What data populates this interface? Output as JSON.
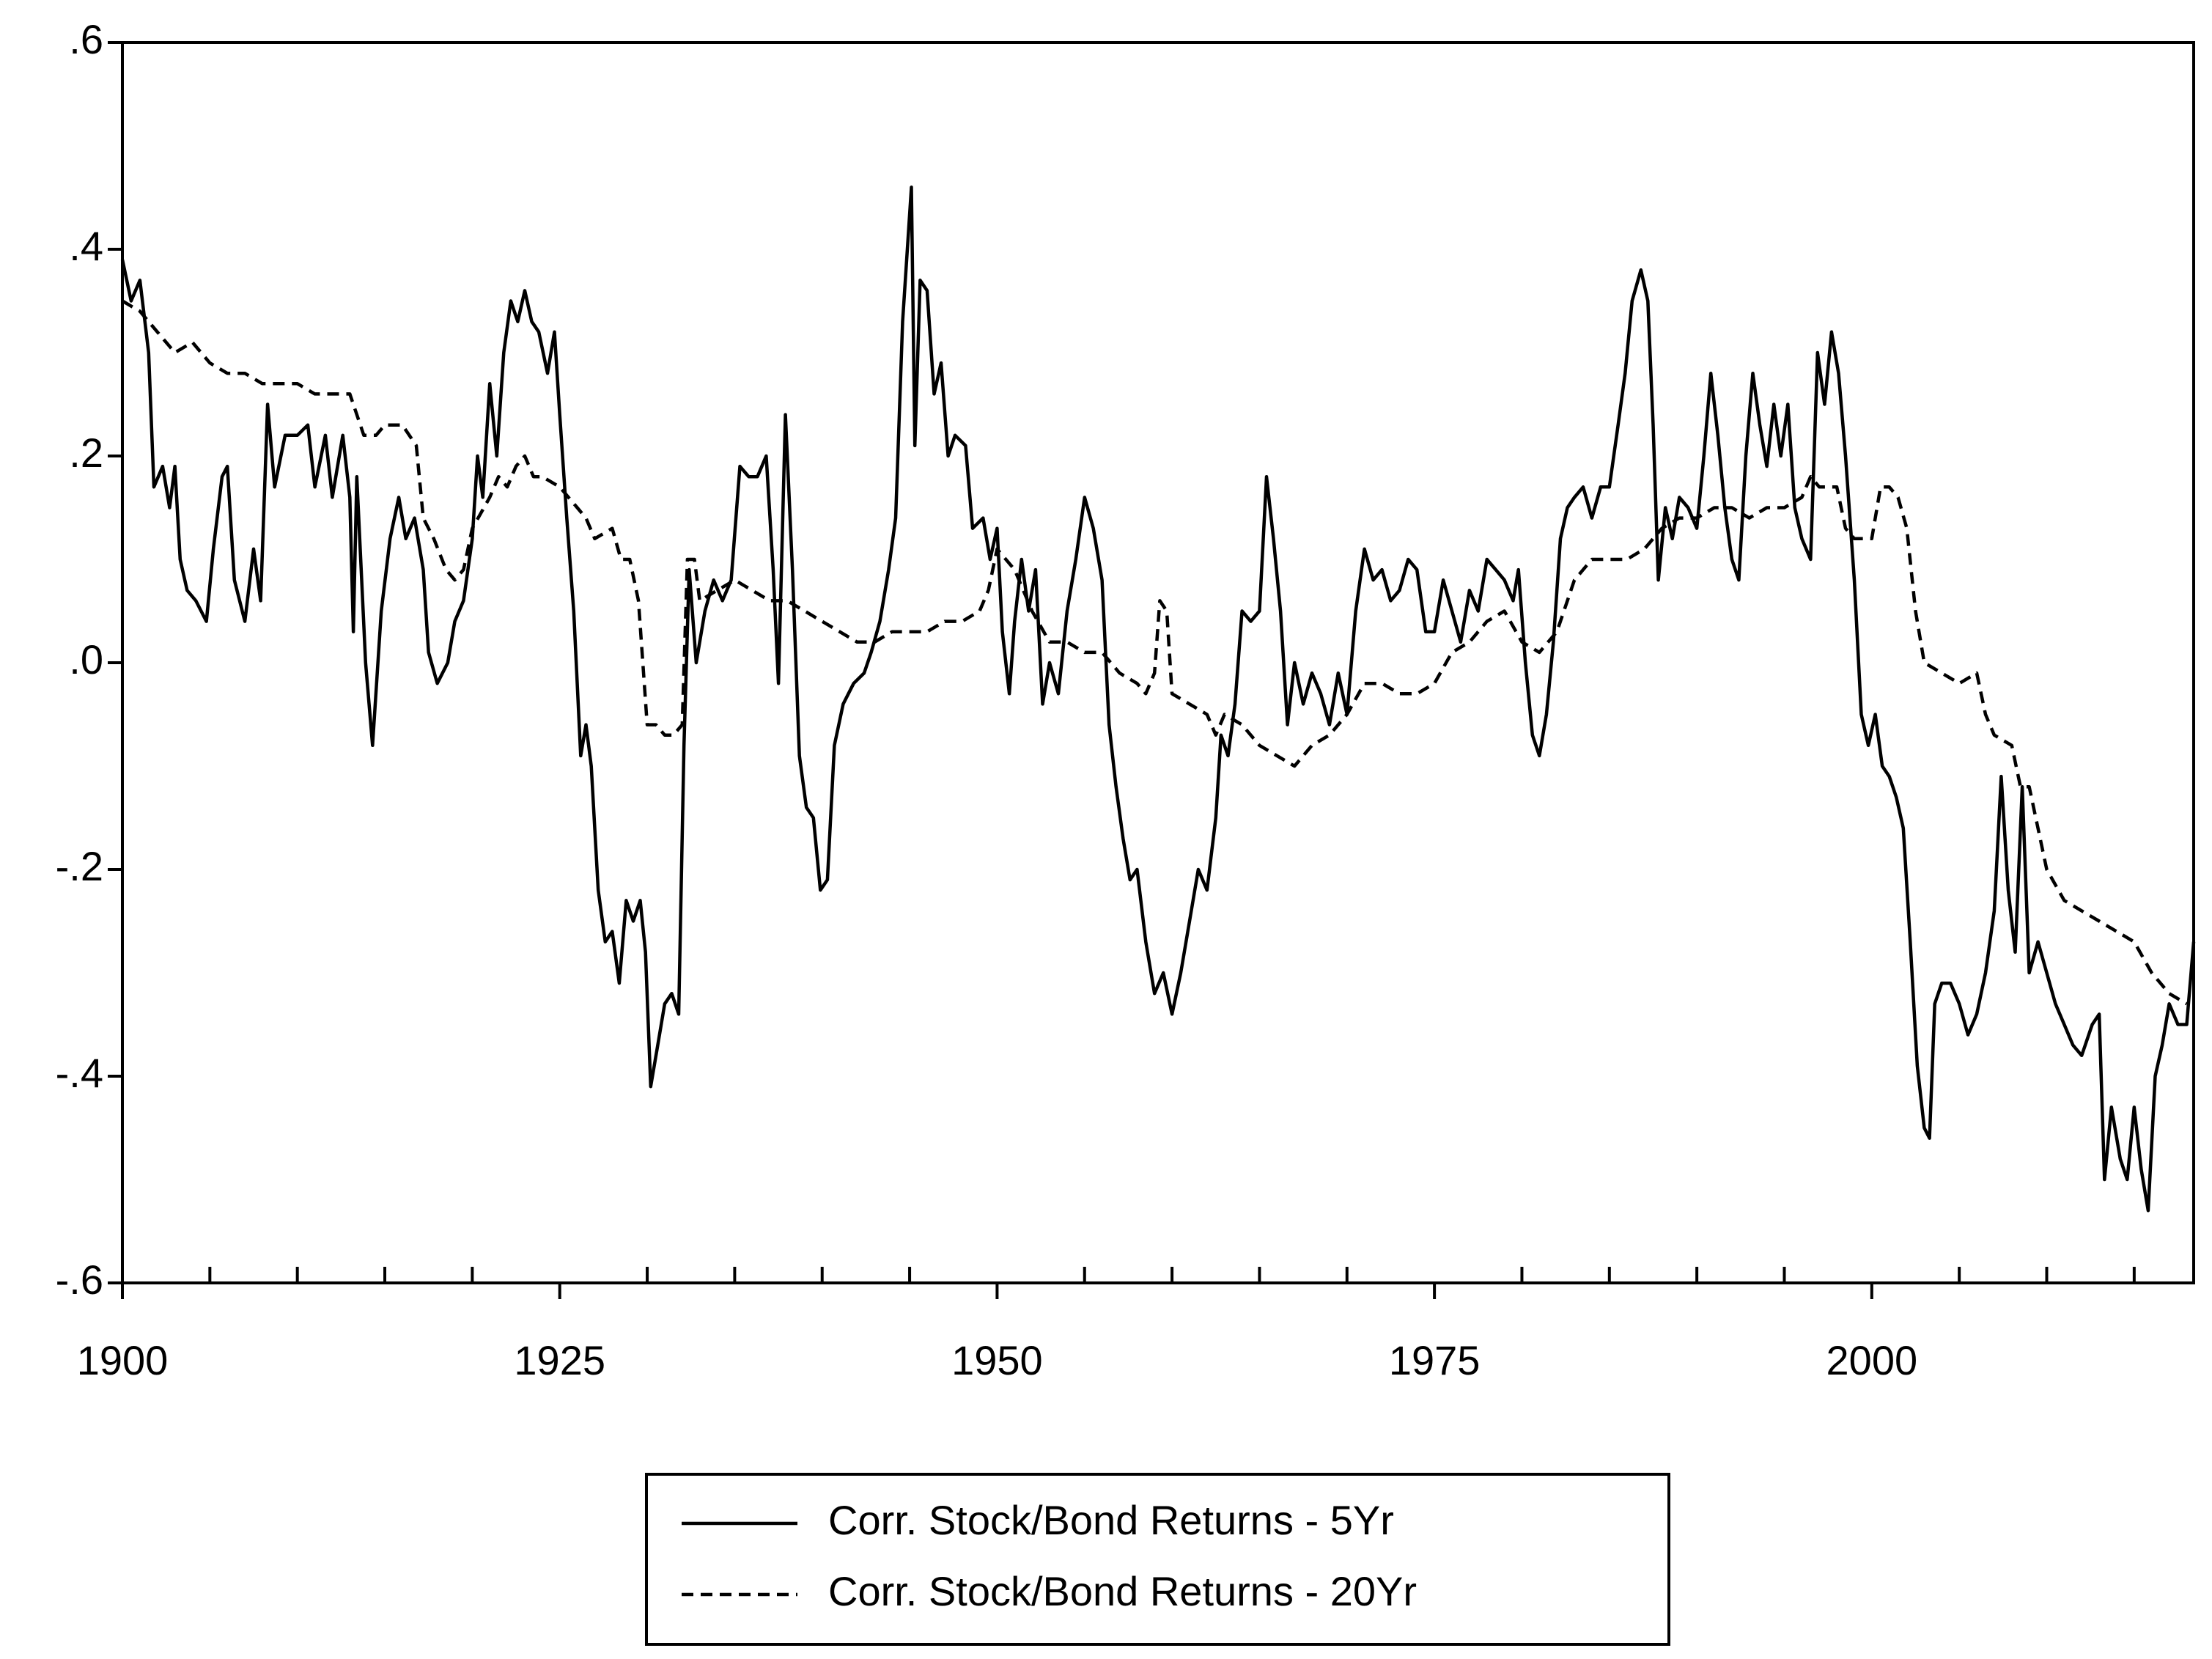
{
  "chart_data": {
    "type": "line",
    "xlim": [
      1900,
      2018.4
    ],
    "xticks": [
      1900,
      1925,
      1950,
      1975,
      2000
    ],
    "xminorticks": [
      1905,
      1910,
      1915,
      1920,
      1930,
      1935,
      1940,
      1945,
      1955,
      1960,
      1965,
      1970,
      1980,
      1985,
      1990,
      1995,
      2005,
      2010,
      2015
    ],
    "ylim": [
      -0.6,
      0.6
    ],
    "yticks": [
      {
        "value": -0.6,
        "label": "-.6"
      },
      {
        "value": -0.4,
        "label": "-.4"
      },
      {
        "value": -0.2,
        "label": "-.2"
      },
      {
        "value": 0,
        "label": ".0"
      },
      {
        "value": 0.2,
        "label": ".2"
      },
      {
        "value": 0.4,
        "label": ".4"
      },
      {
        "value": 0.6,
        "label": ".6"
      }
    ],
    "grid": false,
    "legend": "bottom",
    "series": [
      {
        "name": "Corr. Stock/Bond Returns - 5Yr",
        "color": "#000000",
        "style": "solid",
        "x": [
          1900,
          1900.5,
          1901,
          1901.5,
          1901.8,
          1902.3,
          1902.7,
          1903,
          1903.3,
          1903.7,
          1904.2,
          1904.8,
          1905.2,
          1905.7,
          1906,
          1906.4,
          1907,
          1907.5,
          1907.9,
          1908.3,
          1908.7,
          1909.3,
          1910,
          1910.6,
          1911,
          1911.6,
          1912,
          1912.6,
          1913,
          1913.2,
          1913.4,
          1913.9,
          1914.3,
          1914.8,
          1915.3,
          1915.8,
          1916.2,
          1916.7,
          1917.2,
          1917.5,
          1918,
          1918.6,
          1919,
          1919.5,
          1920,
          1920.3,
          1920.6,
          1921,
          1921.4,
          1921.8,
          1922.2,
          1922.6,
          1923,
          1923.4,
          1923.8,
          1924.3,
          1924.7,
          1925,
          1925.4,
          1925.8,
          1926.2,
          1926.5,
          1926.8,
          1927.2,
          1927.6,
          1928,
          1928.4,
          1928.8,
          1929.2,
          1929.6,
          1929.9,
          1930.2,
          1930.6,
          1931,
          1931.4,
          1931.8,
          1932.1,
          1932.4,
          1932.8,
          1933.3,
          1933.8,
          1934.3,
          1934.8,
          1935.3,
          1935.8,
          1936.3,
          1936.8,
          1937.2,
          1937.5,
          1937.9,
          1938.3,
          1938.7,
          1939.1,
          1939.5,
          1939.9,
          1940.3,
          1940.7,
          1941.2,
          1941.8,
          1942.4,
          1942.8,
          1943.3,
          1943.8,
          1944.2,
          1944.6,
          1945.1,
          1945.3,
          1945.6,
          1946,
          1946.4,
          1946.8,
          1947.2,
          1947.6,
          1948.2,
          1948.6,
          1949.2,
          1949.6,
          1950,
          1950.3,
          1950.7,
          1951,
          1951.4,
          1951.8,
          1952.2,
          1952.6,
          1953,
          1953.5,
          1954,
          1954.5,
          1955,
          1955.5,
          1956,
          1956.4,
          1956.8,
          1957.2,
          1957.6,
          1958,
          1958.5,
          1959,
          1959.5,
          1960,
          1960.5,
          1961,
          1961.5,
          1962,
          1962.5,
          1962.8,
          1963.2,
          1963.6,
          1964,
          1964.5,
          1965,
          1965.4,
          1965.8,
          1966.2,
          1966.6,
          1967,
          1967.5,
          1968,
          1968.5,
          1969,
          1969.5,
          1970,
          1970.5,
          1971,
          1971.5,
          1972,
          1972.5,
          1973,
          1973.5,
          1974,
          1974.5,
          1975,
          1975.5,
          1976,
          1976.5,
          1977,
          1977.5,
          1978,
          1978.5,
          1979,
          1979.5,
          1979.8,
          1980.2,
          1980.6,
          1981,
          1981.4,
          1981.8,
          1982.2,
          1982.6,
          1983,
          1983.5,
          1984,
          1984.5,
          1985,
          1985.5,
          1985.9,
          1986.3,
          1986.8,
          1987.2,
          1987.5,
          1987.8,
          1988.2,
          1988.6,
          1989,
          1989.5,
          1990,
          1990.4,
          1990.8,
          1991.2,
          1991.6,
          1992,
          1992.4,
          1992.8,
          1993.2,
          1993.6,
          1994,
          1994.4,
          1994.8,
          1995.2,
          1995.6,
          1996,
          1996.5,
          1996.9,
          1997.3,
          1997.7,
          1998.1,
          1998.5,
          1999,
          1999.4,
          1999.8,
          2000.2,
          2000.6,
          2001,
          2001.4,
          2001.8,
          2002.2,
          2002.6,
          2003,
          2003.3,
          2003.6,
          2004,
          2004.5,
          2005,
          2005.5,
          2006,
          2006.5,
          2007,
          2007.4,
          2007.8,
          2008.2,
          2008.6,
          2009,
          2009.5,
          2010,
          2010.5,
          2011,
          2011.5,
          2012,
          2012.6,
          2013,
          2013.3,
          2013.7,
          2014.2,
          2014.6,
          2015,
          2015.4,
          2015.8,
          2016.2,
          2016.6,
          2017,
          2017.5,
          2018,
          2018.4
        ],
        "values": [
          0.39,
          0.35,
          0.37,
          0.3,
          0.17,
          0.19,
          0.15,
          0.19,
          0.1,
          0.07,
          0.06,
          0.04,
          0.11,
          0.18,
          0.19,
          0.08,
          0.04,
          0.11,
          0.06,
          0.25,
          0.17,
          0.22,
          0.22,
          0.23,
          0.17,
          0.22,
          0.16,
          0.22,
          0.16,
          0.03,
          0.18,
          0.0,
          -0.08,
          0.05,
          0.12,
          0.16,
          0.12,
          0.14,
          0.09,
          0.01,
          -0.02,
          0.0,
          0.04,
          0.06,
          0.12,
          0.2,
          0.16,
          0.27,
          0.2,
          0.3,
          0.35,
          0.33,
          0.36,
          0.33,
          0.32,
          0.28,
          0.32,
          0.24,
          0.14,
          0.05,
          -0.09,
          -0.06,
          -0.1,
          -0.22,
          -0.27,
          -0.26,
          -0.31,
          -0.23,
          -0.25,
          -0.23,
          -0.28,
          -0.41,
          -0.37,
          -0.33,
          -0.32,
          -0.34,
          -0.08,
          0.09,
          0.0,
          0.05,
          0.08,
          0.06,
          0.08,
          0.19,
          0.18,
          0.18,
          0.2,
          0.09,
          -0.02,
          0.24,
          0.09,
          -0.09,
          -0.14,
          -0.15,
          -0.22,
          -0.21,
          -0.08,
          -0.04,
          -0.02,
          -0.01,
          0.01,
          0.04,
          0.09,
          0.14,
          0.33,
          0.46,
          0.21,
          0.37,
          0.36,
          0.26,
          0.29,
          0.2,
          0.22,
          0.21,
          0.13,
          0.14,
          0.1,
          0.13,
          0.03,
          -0.03,
          0.04,
          0.1,
          0.05,
          0.09,
          -0.04,
          0.0,
          -0.03,
          0.05,
          0.1,
          0.16,
          0.13,
          0.08,
          -0.06,
          -0.12,
          -0.17,
          -0.21,
          -0.2,
          -0.27,
          -0.32,
          -0.3,
          -0.34,
          -0.3,
          -0.25,
          -0.2,
          -0.22,
          -0.15,
          -0.07,
          -0.09,
          -0.04,
          0.05,
          0.04,
          0.05,
          0.18,
          0.12,
          0.05,
          -0.06,
          0.0,
          -0.04,
          -0.01,
          -0.03,
          -0.06,
          -0.01,
          -0.05,
          0.05,
          0.11,
          0.08,
          0.09,
          0.06,
          0.07,
          0.1,
          0.09,
          0.03,
          0.03,
          0.08,
          0.05,
          0.02,
          0.07,
          0.05,
          0.1,
          0.09,
          0.08,
          0.06,
          0.09,
          0.0,
          -0.07,
          -0.09,
          -0.05,
          0.02,
          0.12,
          0.15,
          0.16,
          0.17,
          0.14,
          0.17,
          0.17,
          0.23,
          0.28,
          0.35,
          0.38,
          0.35,
          0.23,
          0.08,
          0.15,
          0.12,
          0.16,
          0.15,
          0.13,
          0.2,
          0.28,
          0.22,
          0.15,
          0.1,
          0.08,
          0.2,
          0.28,
          0.23,
          0.19,
          0.25,
          0.2,
          0.25,
          0.15,
          0.12,
          0.1,
          0.3,
          0.25,
          0.32,
          0.28,
          0.2,
          0.08,
          -0.05,
          -0.08,
          -0.05,
          -0.1,
          -0.11,
          -0.13,
          -0.16,
          -0.27,
          -0.39,
          -0.45,
          -0.46,
          -0.33,
          -0.31,
          -0.31,
          -0.33,
          -0.36,
          -0.34,
          -0.3,
          -0.24,
          -0.11,
          -0.22,
          -0.28,
          -0.12,
          -0.3,
          -0.27,
          -0.3,
          -0.33,
          -0.35,
          -0.37,
          -0.38,
          -0.35,
          -0.34,
          -0.5,
          -0.43,
          -0.48,
          -0.5,
          -0.43,
          -0.49,
          -0.53,
          -0.4,
          -0.37,
          -0.33,
          -0.35,
          -0.35,
          -0.27
        ]
      },
      {
        "name": "Corr. Stock/Bond Returns - 20Yr",
        "color": "#000000",
        "style": "dashed",
        "x": [
          1900,
          1901,
          1901.5,
          1902,
          1903,
          1904,
          1905,
          1906,
          1907,
          1908,
          1909,
          1910,
          1911,
          1912,
          1913,
          1913.8,
          1914.5,
          1915,
          1916,
          1916.8,
          1917.2,
          1917.8,
          1918.5,
          1919,
          1919.5,
          1920,
          1921,
          1921.5,
          1922,
          1922.5,
          1923,
          1923.5,
          1924,
          1925,
          1926,
          1926.5,
          1927,
          1928,
          1928.5,
          1929,
          1929.5,
          1930,
          1930.5,
          1931,
          1931.5,
          1932,
          1932.3,
          1932.7,
          1933,
          1934,
          1935,
          1936,
          1937,
          1938,
          1939,
          1940,
          1941,
          1942,
          1943,
          1944,
          1945,
          1946,
          1947,
          1948,
          1949,
          1949.5,
          1950,
          1951,
          1952,
          1953,
          1954,
          1955,
          1956,
          1957,
          1958,
          1958.5,
          1959,
          1959.3,
          1959.7,
          1960,
          1961,
          1962,
          1962.5,
          1963,
          1964,
          1965,
          1966,
          1967,
          1968,
          1969,
          1970,
          1971,
          1972,
          1973,
          1974,
          1975,
          1976,
          1977,
          1978,
          1979,
          1980,
          1981,
          1982,
          1983,
          1984,
          1985,
          1986,
          1987,
          1988,
          1989,
          1990,
          1991,
          1992,
          1993,
          1994,
          1995,
          1996,
          1996.5,
          1997,
          1998,
          1998.5,
          1999,
          2000,
          2000.5,
          2001,
          2001.5,
          2002,
          2002.5,
          2003,
          2004,
          2005,
          2006,
          2006.5,
          2007,
          2008,
          2008.5,
          2009,
          2010,
          2011,
          2012,
          2013,
          2014,
          2015,
          2016,
          2017,
          2018
        ],
        "values": [
          0.35,
          0.34,
          0.33,
          0.32,
          0.3,
          0.31,
          0.29,
          0.28,
          0.28,
          0.27,
          0.27,
          0.27,
          0.26,
          0.26,
          0.26,
          0.22,
          0.22,
          0.23,
          0.23,
          0.21,
          0.14,
          0.12,
          0.09,
          0.08,
          0.09,
          0.13,
          0.16,
          0.18,
          0.17,
          0.19,
          0.2,
          0.18,
          0.18,
          0.17,
          0.15,
          0.14,
          0.12,
          0.13,
          0.1,
          0.1,
          0.06,
          -0.06,
          -0.06,
          -0.07,
          -0.07,
          -0.06,
          0.1,
          0.1,
          0.06,
          0.07,
          0.08,
          0.07,
          0.06,
          0.06,
          0.05,
          0.04,
          0.03,
          0.02,
          0.02,
          0.03,
          0.03,
          0.03,
          0.04,
          0.04,
          0.05,
          0.07,
          0.11,
          0.09,
          0.05,
          0.02,
          0.02,
          0.01,
          0.01,
          -0.01,
          -0.02,
          -0.03,
          -0.01,
          0.06,
          0.05,
          -0.03,
          -0.04,
          -0.05,
          -0.07,
          -0.05,
          -0.06,
          -0.08,
          -0.09,
          -0.1,
          -0.08,
          -0.07,
          -0.05,
          -0.02,
          -0.02,
          -0.03,
          -0.03,
          -0.02,
          0.01,
          0.02,
          0.04,
          0.05,
          0.02,
          0.01,
          0.03,
          0.08,
          0.1,
          0.1,
          0.1,
          0.11,
          0.13,
          0.14,
          0.14,
          0.15,
          0.15,
          0.14,
          0.15,
          0.15,
          0.16,
          0.18,
          0.17,
          0.17,
          0.13,
          0.12,
          0.12,
          0.17,
          0.17,
          0.16,
          0.13,
          0.05,
          0.0,
          -0.01,
          -0.02,
          -0.01,
          -0.05,
          -0.07,
          -0.08,
          -0.12,
          -0.12,
          -0.2,
          -0.23,
          -0.24,
          -0.25,
          -0.26,
          -0.27,
          -0.3,
          -0.32,
          -0.33
        ]
      }
    ]
  }
}
